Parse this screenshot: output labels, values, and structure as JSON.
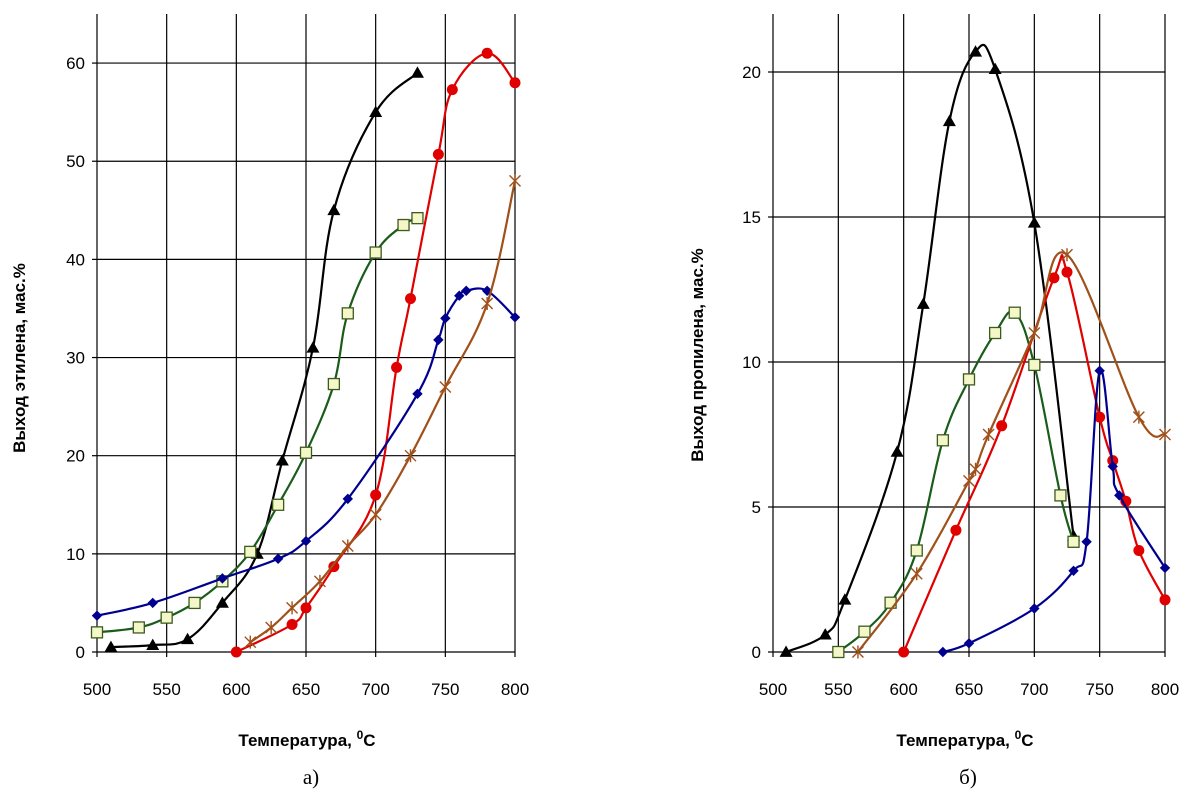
{
  "chart_data": [
    {
      "type": "line",
      "caption": "а)",
      "xlabel": "Температура, ",
      "xlabel_sup": "0",
      "xlabel_suffix": "C",
      "ylabel": "Выход этилена, мас.%",
      "xlim": [
        500,
        800
      ],
      "ylim": [
        0,
        65
      ],
      "x_ticks": [
        500,
        550,
        600,
        650,
        700,
        750,
        800
      ],
      "y_ticks": [
        0,
        10,
        20,
        30,
        40,
        50,
        60
      ],
      "grid": true,
      "series": [
        {
          "color": "#000000",
          "marker": "triangle",
          "x": [
            510,
            540,
            565,
            590,
            615,
            633,
            655,
            670,
            700,
            730
          ],
          "y": [
            0.5,
            0.7,
            1.3,
            5.0,
            10.0,
            19.5,
            31.0,
            45.0,
            55.0,
            59.0
          ]
        },
        {
          "color": "#1a5c1a",
          "marker": "square",
          "x": [
            500,
            530,
            550,
            570,
            590,
            610,
            630,
            650,
            670,
            680,
            700,
            720,
            730
          ],
          "y": [
            2.0,
            2.5,
            3.5,
            5.0,
            7.2,
            10.2,
            15.0,
            20.3,
            27.3,
            34.5,
            40.7,
            43.5,
            44.2
          ]
        },
        {
          "color": "#e00000",
          "marker": "circle",
          "x": [
            600,
            640,
            650,
            670,
            700,
            715,
            725,
            745,
            755,
            780,
            800
          ],
          "y": [
            0.0,
            2.8,
            4.5,
            8.7,
            16.0,
            29.0,
            36.0,
            50.7,
            57.3,
            61.0,
            58.0
          ]
        },
        {
          "color": "#000090",
          "marker": "diamond",
          "x": [
            500,
            540,
            590,
            630,
            650,
            680,
            730,
            745,
            750,
            760,
            765,
            780,
            800
          ],
          "y": [
            3.7,
            5.0,
            7.5,
            9.5,
            11.3,
            15.6,
            26.3,
            31.8,
            34.0,
            36.3,
            36.8,
            36.8,
            34.1
          ]
        },
        {
          "color": "#a0501a",
          "marker": "star",
          "x": [
            610,
            625,
            640,
            660,
            680,
            700,
            725,
            750,
            780,
            800
          ],
          "y": [
            1.0,
            2.5,
            4.5,
            7.2,
            10.8,
            14.0,
            20.0,
            27.0,
            35.5,
            48.0
          ]
        }
      ]
    },
    {
      "type": "line",
      "caption": "б)",
      "xlabel": "Температура, ",
      "xlabel_sup": "0",
      "xlabel_suffix": "C",
      "ylabel": "Выход пропилена, мас.%",
      "xlim": [
        500,
        800
      ],
      "ylim": [
        0,
        22
      ],
      "x_ticks": [
        500,
        550,
        600,
        650,
        700,
        750,
        800
      ],
      "y_ticks": [
        0,
        5,
        10,
        15,
        20
      ],
      "grid": true,
      "series": [
        {
          "color": "#000000",
          "marker": "triangle",
          "x": [
            510,
            540,
            555,
            595,
            615,
            635,
            655,
            670,
            700,
            730
          ],
          "y": [
            0.0,
            0.6,
            1.8,
            6.9,
            12.0,
            18.3,
            20.7,
            20.1,
            14.8,
            4.0
          ]
        },
        {
          "color": "#1a5c1a",
          "marker": "square",
          "x": [
            550,
            570,
            590,
            610,
            630,
            650,
            670,
            685,
            700,
            720,
            730
          ],
          "y": [
            0.0,
            0.7,
            1.7,
            3.5,
            7.3,
            9.4,
            11.0,
            11.7,
            9.9,
            5.4,
            3.8
          ]
        },
        {
          "color": "#e00000",
          "marker": "circle",
          "x": [
            600,
            640,
            675,
            715,
            725,
            750,
            760,
            770,
            780,
            800
          ],
          "y": [
            0.0,
            4.2,
            7.8,
            12.9,
            13.1,
            8.1,
            6.6,
            5.2,
            3.5,
            1.8
          ]
        },
        {
          "color": "#000090",
          "marker": "diamond",
          "x": [
            630,
            650,
            700,
            730,
            740,
            750,
            760,
            765,
            800
          ],
          "y": [
            0.0,
            0.3,
            1.5,
            2.8,
            3.8,
            9.7,
            6.4,
            5.4,
            2.9
          ]
        },
        {
          "color": "#a0501a",
          "marker": "star",
          "x": [
            565,
            610,
            650,
            655,
            665,
            700,
            725,
            780,
            800
          ],
          "y": [
            0.0,
            2.7,
            5.9,
            6.3,
            7.5,
            11.0,
            13.7,
            8.1,
            7.5
          ]
        }
      ]
    }
  ]
}
